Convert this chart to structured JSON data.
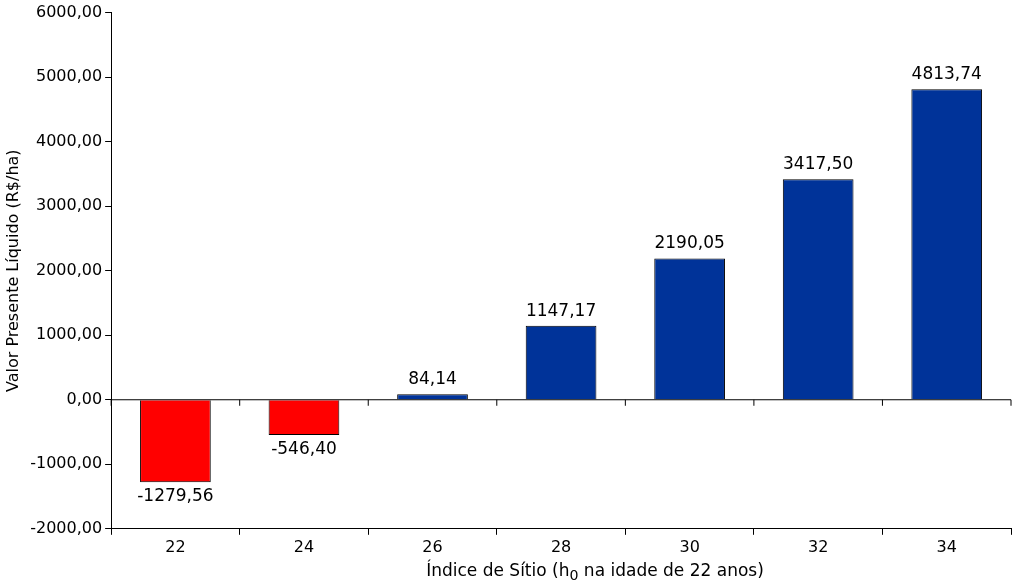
{
  "chart_data": {
    "type": "bar",
    "xlabel": "Índice de Sítio (h$_{0}$ na idade de 22 anos)",
    "ylabel": "Valor Presente Líquido (R$/ha)",
    "categories": [
      "22",
      "24",
      "26",
      "28",
      "30",
      "32",
      "34"
    ],
    "values": [
      -1279.56,
      -546.4,
      84.14,
      1147.17,
      2190.05,
      3417.5,
      4813.74
    ],
    "colors": [
      "#ff0000",
      "#ff0000",
      "#003399",
      "#003399",
      "#003399",
      "#003399",
      "#003399"
    ],
    "value_labels": [
      "-1279,56",
      "-546,40",
      "84,14",
      "1147,17",
      "2190,05",
      "3417,50",
      "4813,74"
    ],
    "ylim": [
      -2000,
      6000
    ],
    "yticks": [
      {
        "value": -2000,
        "label": "-2000,00"
      },
      {
        "value": -1000,
        "label": "-1000,00"
      },
      {
        "value": 0,
        "label": "0,00"
      },
      {
        "value": 1000,
        "label": "1000,00"
      },
      {
        "value": 2000,
        "label": "2000,00"
      },
      {
        "value": 3000,
        "label": "3000,00"
      },
      {
        "value": 4000,
        "label": "4000,00"
      },
      {
        "value": 5000,
        "label": "5000,00"
      },
      {
        "value": 6000,
        "label": "6000,00"
      }
    ],
    "ref_lines": [
      {
        "axis": "y",
        "value": 0,
        "color": "#000000",
        "line_style": "solid"
      }
    ],
    "grid": false,
    "legend": false
  }
}
